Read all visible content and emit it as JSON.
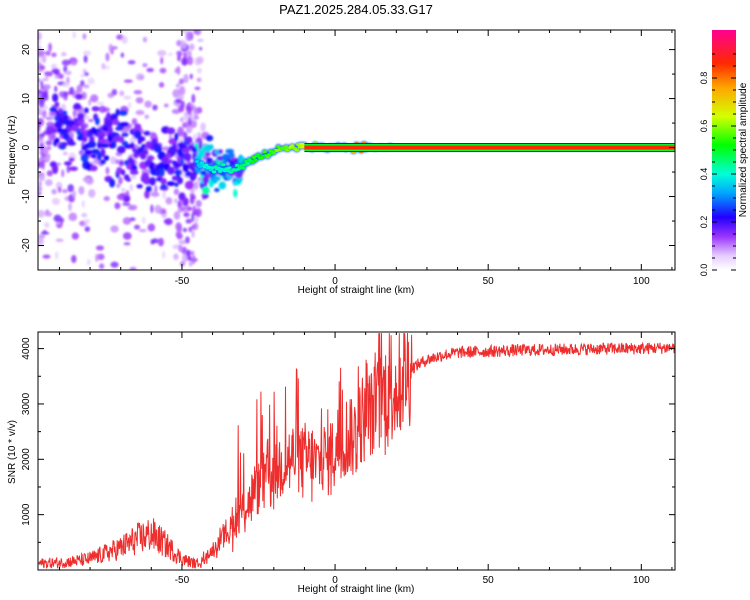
{
  "chart_data": [
    {
      "type": "heatmap",
      "title": "PAZ1.2025.284.05.33.G17",
      "xlabel": "Height of straight line (km)",
      "ylabel": "Frequency (Hz)",
      "xlim": [
        -97,
        111
      ],
      "ylim": [
        -25,
        24
      ],
      "xticks": [
        "-50",
        "0",
        "50",
        "100"
      ],
      "yticks": [
        "20",
        "10",
        "0",
        "-10",
        "-20"
      ],
      "colorbar": {
        "label": "Normalized spectral amplitude",
        "ticks": [
          "0.0",
          "0.2",
          "0.4",
          "0.6",
          "0.8"
        ],
        "range": [
          0,
          1
        ]
      },
      "ridge": [
        [
          -80,
          2
        ],
        [
          -70,
          0
        ],
        [
          -60,
          -3
        ],
        [
          -50,
          -3
        ],
        [
          -40,
          -4
        ],
        [
          -35,
          -5
        ],
        [
          -30,
          -4
        ],
        [
          -25,
          -2
        ],
        [
          -20,
          -1
        ],
        [
          -15,
          0
        ],
        [
          -10,
          0
        ],
        [
          -5,
          0
        ],
        [
          0,
          0
        ],
        [
          10,
          0
        ],
        [
          20,
          0
        ],
        [
          50,
          0
        ],
        [
          111,
          0
        ]
      ]
    },
    {
      "type": "line",
      "xlabel": "Height of straight line (km)",
      "ylabel": "SNR (10 * v/v)",
      "xlim": [
        -97,
        111
      ],
      "ylim": [
        0,
        4300
      ],
      "xticks": [
        "-50",
        "0",
        "50",
        "100"
      ],
      "yticks": [
        "4000",
        "3000",
        "2000",
        "1000"
      ],
      "color": "#ee2d2d",
      "series": [
        {
          "name": "SNR",
          "x": [
            -97,
            -90,
            -85,
            -80,
            -75,
            -70,
            -65,
            -60,
            -55,
            -50,
            -45,
            -40,
            -35,
            -30,
            -25,
            -20,
            -15,
            -10,
            -5,
            0,
            5,
            10,
            15,
            20,
            25,
            30,
            35,
            40,
            50,
            60,
            70,
            80,
            90,
            100,
            111
          ],
          "y": [
            120,
            130,
            160,
            200,
            300,
            400,
            550,
            650,
            450,
            200,
            100,
            350,
            700,
            1100,
            1500,
            1800,
            2000,
            2000,
            1900,
            2200,
            2400,
            2700,
            3100,
            3400,
            3650,
            3800,
            3880,
            3930,
            3950,
            3970,
            3980,
            3990,
            4000,
            4000,
            4020
          ]
        }
      ]
    }
  ]
}
